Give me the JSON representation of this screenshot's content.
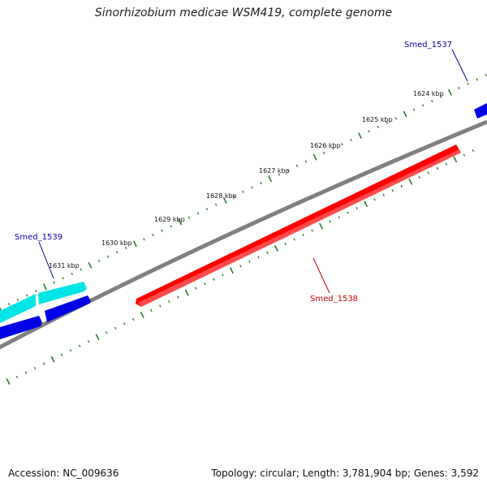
{
  "title": "Sinorhizobium medicae WSM419, complete genome",
  "footer": {
    "accession": "Accession: NC_009636",
    "summary": "Topology: circular; Length: 3,781,904 bp; Genes: 3,592"
  },
  "colors": {
    "backbone": "#808080",
    "tick": "#2a7a2a",
    "gene_red": "#ff0000",
    "gene_blue": "#0000e6",
    "gene_cyan": "#00e5e5",
    "label_blue": "#0000aa",
    "label_red": "#cc0000"
  },
  "ruler": {
    "kbp_labels": [
      "1624 kbp",
      "1625 kbp",
      "1626 kbp",
      "1627 kbp",
      "1628 kbp",
      "1629 kbp",
      "1630 kbp",
      "1631 kbp"
    ]
  },
  "genes": [
    {
      "id": "Smed_1537",
      "label": "Smed_1537",
      "color": "blue"
    },
    {
      "id": "Smed_1538",
      "label": "Smed_1538",
      "color": "red"
    },
    {
      "id": "Smed_1539",
      "label": "Smed_1539",
      "color": "cyan"
    }
  ]
}
